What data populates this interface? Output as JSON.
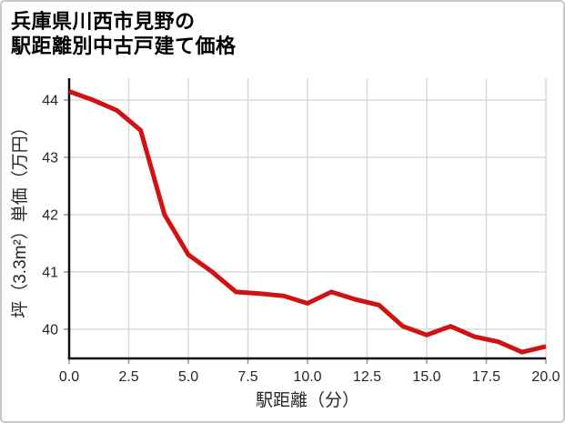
{
  "card": {
    "title_line1": "兵庫県川西市見野の",
    "title_line2": "駅距離別中古戸建て価格"
  },
  "chart_data": {
    "type": "line",
    "title": "兵庫県川西市見野の駅距離別中古戸建て価格",
    "xlabel": "駅距離（分）",
    "ylabel": "坪（3.3m²）単価（万円）",
    "x": [
      0,
      1,
      2,
      3,
      4,
      5,
      6,
      7,
      8,
      9,
      10,
      11,
      12,
      13,
      14,
      15,
      16,
      17,
      18,
      19,
      20
    ],
    "values": [
      44.15,
      44.0,
      43.82,
      43.47,
      42.0,
      41.3,
      41.0,
      40.65,
      40.62,
      40.58,
      40.45,
      40.65,
      40.52,
      40.42,
      40.05,
      39.9,
      40.05,
      39.87,
      39.78,
      39.6,
      39.7
    ],
    "xlim": [
      0,
      20
    ],
    "ylim": [
      39.49,
      44.38
    ],
    "xtick_values": [
      0,
      2.5,
      5,
      7.5,
      10,
      12.5,
      15,
      17.5,
      20
    ],
    "xtick_labels": [
      "0.0",
      "2.5",
      "5.0",
      "7.5",
      "10.0",
      "12.5",
      "15.0",
      "17.5",
      "20.0"
    ],
    "ytick_values": [
      40,
      41,
      42,
      43,
      44
    ],
    "ytick_labels": [
      "40",
      "41",
      "42",
      "43",
      "44"
    ],
    "grid": true,
    "legend": false,
    "line_width": 5,
    "line_color": "#d01212",
    "grid_color": "#d9d9d9",
    "axis_color": "#111111",
    "tick_color": "#999999",
    "text_color": "#262626"
  }
}
